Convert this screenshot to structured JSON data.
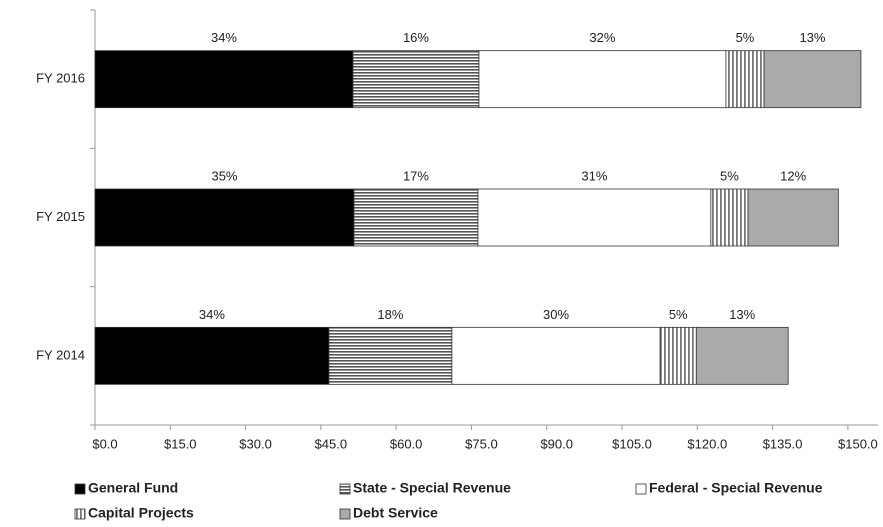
{
  "chart_data": {
    "type": "stacked_barh",
    "categories": [
      "FY 2016",
      "FY 2015",
      "FY 2014"
    ],
    "series": [
      {
        "name": "General Fund",
        "color": "#000000",
        "pattern": "solid",
        "values": [
          51.4,
          51.6,
          46.6
        ],
        "value_labels": [
          "34%",
          "35%",
          "34%"
        ]
      },
      {
        "name": "State - Special Revenue",
        "color": "#555555",
        "pattern": "horizontal",
        "values": [
          25.1,
          24.7,
          24.5
        ],
        "value_labels": [
          "16%",
          "17%",
          "18%"
        ]
      },
      {
        "name": "Federal - Special Revenue",
        "color": "#ffffff",
        "pattern": "solid",
        "values": [
          49.2,
          46.4,
          41.5
        ],
        "value_labels": [
          "32%",
          "31%",
          "30%"
        ]
      },
      {
        "name": "Capital Projects",
        "color": "#777777",
        "pattern": "vertical",
        "values": [
          7.6,
          7.4,
          7.2
        ],
        "value_labels": [
          "5%",
          "5%",
          "5%"
        ]
      },
      {
        "name": "Debt Service",
        "color": "#aaaaaa",
        "pattern": "solid",
        "values": [
          19.3,
          18.0,
          18.3
        ],
        "value_labels": [
          "13%",
          "12%",
          "13%"
        ]
      }
    ],
    "xlim": [
      0,
      156
    ],
    "xticks": [
      {
        "value": 0,
        "label": "$0.0"
      },
      {
        "value": 15,
        "label": "$15.0"
      },
      {
        "value": 30,
        "label": "$30.0"
      },
      {
        "value": 45,
        "label": "$45.0"
      },
      {
        "value": 60,
        "label": "$60.0"
      },
      {
        "value": 75,
        "label": "$75.0"
      },
      {
        "value": 90,
        "label": "$90.0"
      },
      {
        "value": 105,
        "label": "$105.0"
      },
      {
        "value": 120,
        "label": "$120.0"
      },
      {
        "value": 135,
        "label": "$135.0"
      },
      {
        "value": 150,
        "label": "$150.0"
      }
    ],
    "legend": "bottom"
  }
}
